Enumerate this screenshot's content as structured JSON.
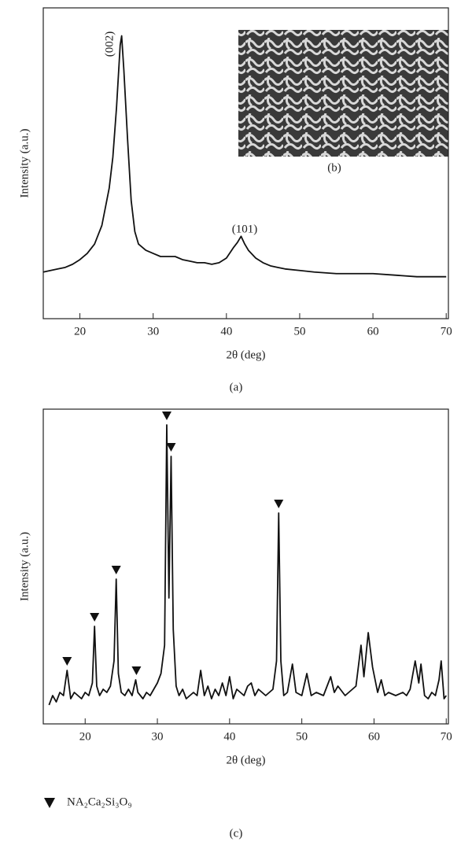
{
  "chart_data": [
    {
      "type": "line",
      "panel_label": "(a)",
      "x_label": "2θ (deg)",
      "y_label": "Intensity (a.u.)",
      "annotations": [
        "(002)",
        "(101)"
      ],
      "inset_label": "(b)",
      "xlim": [
        15,
        70.3
      ],
      "xticks": [
        20,
        30,
        40,
        50,
        60,
        70
      ],
      "ylim": [
        0,
        100
      ],
      "series": [
        {
          "color": "#111",
          "x": [
            15,
            16,
            17,
            18,
            19,
            20,
            21,
            22,
            23,
            24,
            24.5,
            25,
            25.5,
            25.7,
            26,
            26.5,
            27,
            27.5,
            28,
            29,
            30,
            31,
            32,
            33,
            34,
            35,
            36,
            37,
            38,
            39,
            40,
            41,
            41.5,
            42,
            42.5,
            43,
            44,
            45,
            46,
            47,
            48,
            50,
            52,
            55,
            58,
            60,
            63,
            66,
            68,
            70
          ],
          "values": [
            15,
            15.5,
            16,
            16.5,
            17.5,
            19,
            21,
            24,
            30,
            42,
            52,
            68,
            88,
            91,
            80,
            58,
            38,
            28,
            24,
            22,
            21,
            20,
            20,
            20,
            19,
            18.5,
            18,
            18,
            17.5,
            18,
            19.5,
            23,
            24.5,
            26.5,
            24,
            22,
            19.5,
            18,
            17,
            16.5,
            16,
            15.5,
            15,
            14.5,
            14.5,
            14.5,
            14,
            13.5,
            13.5,
            13.5
          ]
        }
      ]
    },
    {
      "type": "line",
      "panel_label": "(c)",
      "x_label": "2θ (deg)",
      "y_label": "Intensity (a.u.)",
      "xlim": [
        14.2,
        70.3
      ],
      "xticks": [
        20,
        30,
        40,
        50,
        60,
        70
      ],
      "ylim": [
        0,
        100
      ],
      "markers": {
        "label": "NA₂Ca₂Si₃O₉",
        "x": [
          17.5,
          21.3,
          24.3,
          27.1,
          31.3,
          31.9,
          46.8
        ]
      },
      "series": [
        {
          "color": "#111",
          "x": [
            15,
            15.5,
            16,
            16.5,
            17,
            17.5,
            18,
            18.5,
            19,
            19.5,
            20,
            20.5,
            21,
            21.3,
            21.6,
            22,
            22.5,
            23,
            23.5,
            24,
            24.3,
            24.6,
            25,
            25.5,
            26,
            26.5,
            27,
            27.3,
            28,
            28.5,
            29,
            29.5,
            30,
            30.5,
            31,
            31.3,
            31.6,
            31.9,
            32.2,
            32.6,
            33,
            33.5,
            34,
            35,
            35.5,
            36,
            36.5,
            37,
            37.5,
            38,
            38.5,
            39,
            39.5,
            40,
            40.5,
            41,
            42,
            42.5,
            43,
            43.5,
            44,
            45,
            45.5,
            46,
            46.5,
            46.8,
            47.1,
            47.5,
            48,
            48.7,
            49.2,
            50,
            50.7,
            51.3,
            52,
            53,
            54,
            54.5,
            55,
            56,
            57,
            57.5,
            58.2,
            58.6,
            59.2,
            59.8,
            60.5,
            61,
            61.5,
            62,
            63,
            64,
            64.5,
            65,
            65.7,
            66.2,
            66.5,
            67,
            67.5,
            68,
            68.5,
            69,
            69.3,
            69.7,
            70
          ],
          "values": [
            6,
            9,
            7,
            10,
            9,
            17,
            8,
            10,
            9,
            8,
            10,
            9,
            13,
            31,
            12,
            9,
            11,
            10,
            12,
            20,
            46,
            16,
            10,
            9,
            11,
            9,
            14,
            10,
            8,
            10,
            9,
            11,
            13,
            16,
            25,
            95,
            40,
            85,
            30,
            12,
            9,
            11,
            8,
            10,
            9,
            17,
            9,
            12,
            8,
            11,
            9,
            13,
            9,
            15,
            8,
            11,
            9,
            12,
            13,
            9,
            11,
            9,
            10,
            11,
            20,
            67,
            20,
            9,
            10,
            19,
            10,
            9,
            16,
            9,
            10,
            9,
            15,
            10,
            12,
            9,
            11,
            12,
            25,
            15,
            29,
            18,
            10,
            14,
            9,
            10,
            9,
            10,
            9,
            11,
            20,
            13,
            19,
            9,
            8,
            10,
            9,
            14,
            20,
            8,
            9
          ]
        }
      ]
    }
  ]
}
